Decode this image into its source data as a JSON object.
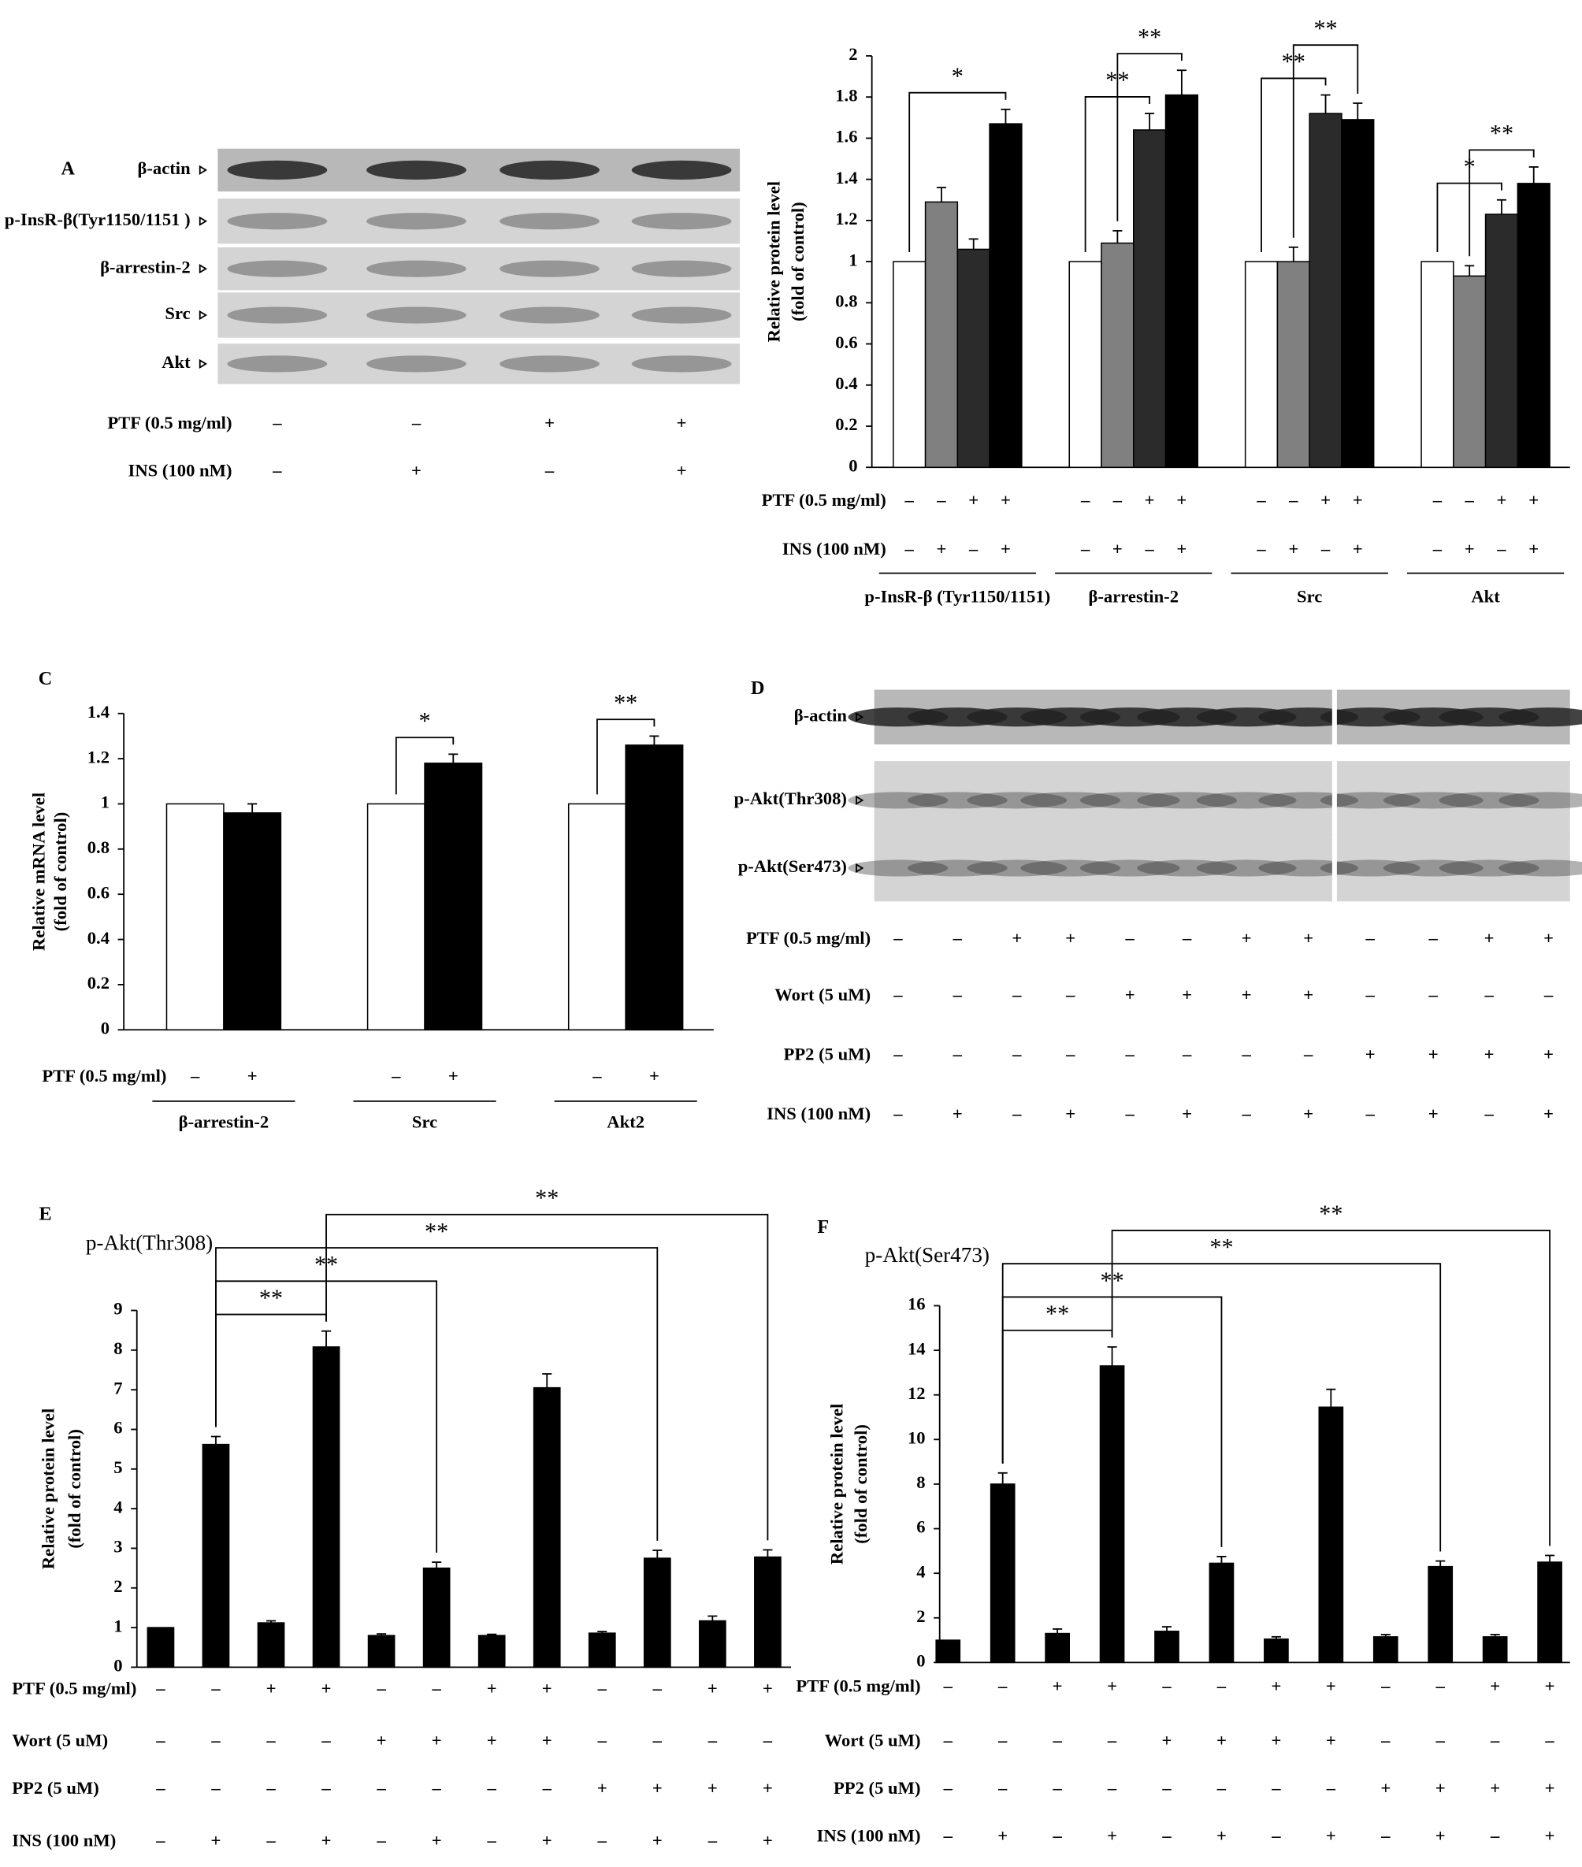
{
  "chart_data": [
    {
      "type": "bar",
      "ylabel": [
        "Relative protein level",
        "(fold of control)"
      ],
      "categories": [
        "p-InsR-β (Tyr1150/1151)",
        "β-arrestin-2",
        "Src",
        "Akt"
      ],
      "series": [
        {
          "color": "#ffffff",
          "values": [
            1,
            1,
            1,
            1
          ],
          "errors": [
            null,
            null,
            null,
            null
          ]
        },
        {
          "color": "#808080",
          "values": [
            1.29,
            1.09,
            1.0,
            0.93
          ],
          "errors": [
            0.07,
            0.06,
            0.07,
            0.05
          ]
        },
        {
          "color": "#2b2b2b",
          "values": [
            1.06,
            1.64,
            1.72,
            1.23
          ],
          "errors": [
            0.05,
            0.08,
            0.09,
            0.07
          ]
        },
        {
          "color": "#000000",
          "values": [
            1.67,
            1.81,
            1.69,
            1.38
          ],
          "errors": [
            0.07,
            0.12,
            0.08,
            0.08
          ]
        }
      ],
      "ylim": [
        0,
        2
      ],
      "yticks": [
        0,
        0.2,
        0.4,
        0.6,
        0.8,
        1,
        1.2,
        1.4,
        1.6,
        1.8,
        2
      ],
      "conditions": [
        {
          "label": "PTF  (0.5 mg/ml)",
          "signs": [
            "–",
            "–",
            "+",
            "+"
          ]
        },
        {
          "label": "INS  (100 nM)",
          "signs": [
            "–",
            "+",
            "–",
            "+"
          ]
        }
      ],
      "annotations": [
        {
          "text": "*",
          "category": 0,
          "from": 0,
          "to": 3
        },
        {
          "text": "**",
          "category": 1,
          "from": 0,
          "to": 2
        },
        {
          "text": "**",
          "category": 1,
          "from": 1,
          "to": 3
        },
        {
          "text": "**",
          "category": 2,
          "from": 0,
          "to": 2
        },
        {
          "text": "**",
          "category": 2,
          "from": 1,
          "to": 3
        },
        {
          "text": "*",
          "category": 3,
          "from": 0,
          "to": 2
        },
        {
          "text": "**",
          "category": 3,
          "from": 1,
          "to": 3
        }
      ]
    },
    {
      "type": "bar",
      "panel": "C",
      "ylabel": [
        "Relative mRNA level",
        "(fold of control)"
      ],
      "categories": [
        "β-arrestin-2",
        "Src",
        "Akt2"
      ],
      "series": [
        {
          "color": "#ffffff",
          "values": [
            1,
            1,
            1
          ],
          "errors": [
            null,
            null,
            null
          ]
        },
        {
          "color": "#000000",
          "values": [
            0.96,
            1.18,
            1.26
          ],
          "errors": [
            0.04,
            0.04,
            0.04
          ]
        }
      ],
      "ylim": [
        0,
        1.4
      ],
      "yticks": [
        0,
        0.2,
        0.4,
        0.6,
        0.8,
        1,
        1.2,
        1.4
      ],
      "conditions": [
        {
          "label": "PTF  (0.5 mg/ml)",
          "signs": [
            "–",
            "+"
          ]
        }
      ],
      "annotations": [
        {
          "text": "*",
          "category": 1,
          "from": 0,
          "to": 1
        },
        {
          "text": "**",
          "category": 2,
          "from": 0,
          "to": 1
        }
      ]
    },
    {
      "type": "bar",
      "panel": "E",
      "title": "p-Akt(Thr308)",
      "ylabel": [
        "Relative protein level",
        "(fold of control)"
      ],
      "series": [
        {
          "color": "#000000",
          "values": [
            1,
            5.62,
            1.12,
            8.08,
            0.8,
            2.5,
            0.8,
            7.05,
            0.86,
            2.75,
            1.17,
            2.78
          ],
          "errors": [
            null,
            0.2,
            0.05,
            0.4,
            0.04,
            0.15,
            0.03,
            0.35,
            0.04,
            0.2,
            0.12,
            0.18
          ]
        }
      ],
      "ylim": [
        0,
        9
      ],
      "yticks": [
        0,
        1,
        2,
        3,
        4,
        5,
        6,
        7,
        8,
        9
      ],
      "conditions": [
        {
          "label": "PTF  (0.5 mg/ml)",
          "signs": [
            "–",
            "–",
            "+",
            "+",
            "–",
            "–",
            "+",
            "+",
            "–",
            "–",
            "+",
            "+"
          ]
        },
        {
          "label": "Wort  (5 uM)",
          "signs": [
            "–",
            "–",
            "–",
            "–",
            "+",
            "+",
            "+",
            "+",
            "–",
            "–",
            "–",
            "–"
          ]
        },
        {
          "label": "PP2  (5 uM)",
          "signs": [
            "–",
            "–",
            "–",
            "–",
            "–",
            "–",
            "–",
            "–",
            "+",
            "+",
            "+",
            "+"
          ]
        },
        {
          "label": "INS  (100 nM)",
          "signs": [
            "–",
            "+",
            "–",
            "+",
            "–",
            "+",
            "–",
            "+",
            "–",
            "+",
            "–",
            "+"
          ]
        }
      ],
      "annotations": [
        {
          "text": "**",
          "from": 1,
          "to": 3
        },
        {
          "text": "**",
          "from": 1,
          "to": 5
        },
        {
          "text": "**",
          "from": 1,
          "to": 9
        },
        {
          "text": "**",
          "from": 3,
          "to": 11
        }
      ]
    },
    {
      "type": "bar",
      "panel": "F",
      "title": "p-Akt(Ser473)",
      "ylabel": [
        "Relative protein level",
        "(fold of control)"
      ],
      "series": [
        {
          "color": "#000000",
          "values": [
            1,
            8,
            1.3,
            13.3,
            1.4,
            4.45,
            1.05,
            11.45,
            1.15,
            4.3,
            1.15,
            4.5
          ],
          "errors": [
            null,
            0.5,
            0.2,
            0.85,
            0.2,
            0.3,
            0.1,
            0.8,
            0.1,
            0.25,
            0.1,
            0.3
          ]
        }
      ],
      "ylim": [
        0,
        16
      ],
      "yticks": [
        0,
        2,
        4,
        6,
        8,
        10,
        12,
        14,
        16
      ],
      "conditions": [
        {
          "label": "PTF  (0.5 mg/ml)",
          "signs": [
            "–",
            "–",
            "+",
            "+",
            "–",
            "–",
            "+",
            "+",
            "–",
            "–",
            "+",
            "+"
          ]
        },
        {
          "label": "Wort  (5 uM)",
          "signs": [
            "–",
            "–",
            "–",
            "–",
            "+",
            "+",
            "+",
            "+",
            "–",
            "–",
            "–",
            "–"
          ]
        },
        {
          "label": "PP2  (5 uM)",
          "signs": [
            "–",
            "–",
            "–",
            "–",
            "–",
            "–",
            "–",
            "–",
            "+",
            "+",
            "+",
            "+"
          ]
        },
        {
          "label": "INS  (100 nM)",
          "signs": [
            "–",
            "+",
            "–",
            "+",
            "–",
            "+",
            "–",
            "+",
            "–",
            "+",
            "–",
            "+"
          ]
        }
      ],
      "annotations": [
        {
          "text": "**",
          "from": 1,
          "to": 3
        },
        {
          "text": "**",
          "from": 1,
          "to": 5
        },
        {
          "text": "**",
          "from": 1,
          "to": 9
        },
        {
          "text": "**",
          "from": 3,
          "to": 11
        }
      ]
    }
  ],
  "blots": [
    {
      "panel": "A",
      "rows": [
        "β-actin",
        "p-InsR-β(Tyr1150/1151 )",
        "β-arrestin-2",
        "Src",
        "Akt"
      ],
      "conditions": [
        {
          "label": "PTF  (0.5 mg/ml)",
          "signs": [
            "–",
            "–",
            "+",
            "+"
          ]
        },
        {
          "label": "INS  (100 nM)",
          "signs": [
            "–",
            "+",
            "–",
            "+"
          ]
        }
      ]
    },
    {
      "panel": "D",
      "rows": [
        "β-actin",
        "p-Akt(Thr308)",
        "p-Akt(Ser473)"
      ],
      "conditions": [
        {
          "label": "PTF  (0.5 mg/ml)",
          "signs": [
            "–",
            "–",
            "+",
            "+",
            "–",
            "–",
            "+",
            "+",
            "–",
            "–",
            "+",
            "+"
          ]
        },
        {
          "label": "Wort  (5 uM)",
          "signs": [
            "–",
            "–",
            "–",
            "–",
            "+",
            "+",
            "+",
            "+",
            "–",
            "–",
            "–",
            "–"
          ]
        },
        {
          "label": "PP2  (5 uM)",
          "signs": [
            "–",
            "–",
            "–",
            "–",
            "–",
            "–",
            "–",
            "–",
            "+",
            "+",
            "+",
            "+"
          ]
        },
        {
          "label": "INS  (100 nM)",
          "signs": [
            "–",
            "+",
            "–",
            "+",
            "–",
            "+",
            "–",
            "+",
            "–",
            "+",
            "–",
            "+"
          ]
        }
      ]
    }
  ]
}
